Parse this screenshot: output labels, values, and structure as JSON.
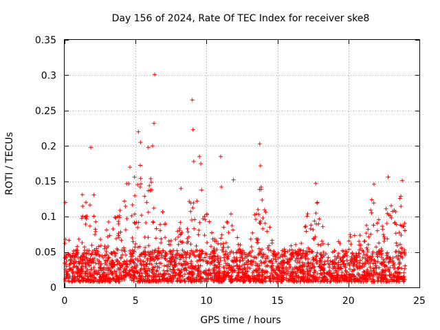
{
  "colors": {
    "series": "#ff0000",
    "axis": "#000000",
    "grid": "#a0a0a0"
  },
  "chart_data": {
    "type": "scatter",
    "title": "Day 156 of 2024, Rate Of TEC Index for receiver ske8",
    "xlabel": "GPS time / hours",
    "ylabel": "ROTI / TECUs",
    "xlim": [
      0,
      25
    ],
    "ylim": [
      0,
      0.35
    ],
    "xticks": [
      0,
      5,
      10,
      15,
      20,
      25
    ],
    "xtick_labels": [
      "0",
      "5",
      "10",
      "15",
      "20",
      "25"
    ],
    "yticks": [
      0,
      0.05,
      0.1,
      0.15,
      0.2,
      0.25,
      0.3,
      0.35
    ],
    "ytick_labels": [
      "0",
      "0.05",
      "0.1",
      "0.15",
      "0.2",
      "0.25",
      "0.3",
      "0.35"
    ],
    "grid": true,
    "marker": "+",
    "series": [
      {
        "name": "ROTI",
        "color": "#ff0000",
        "x_range": [
          0,
          24
        ],
        "baseline_density": 2600,
        "envelope": [
          [
            0.0,
            0.1
          ],
          [
            0.3,
            0.08
          ],
          [
            0.8,
            0.06
          ],
          [
            1.2,
            0.14
          ],
          [
            1.5,
            0.12
          ],
          [
            1.9,
            0.18
          ],
          [
            2.3,
            0.08
          ],
          [
            2.8,
            0.1
          ],
          [
            3.4,
            0.1
          ],
          [
            3.9,
            0.11
          ],
          [
            4.4,
            0.15
          ],
          [
            5.0,
            0.16
          ],
          [
            5.3,
            0.19
          ],
          [
            5.6,
            0.13
          ],
          [
            6.0,
            0.17
          ],
          [
            6.4,
            0.19
          ],
          [
            6.8,
            0.12
          ],
          [
            7.3,
            0.07
          ],
          [
            8.0,
            0.09
          ],
          [
            8.5,
            0.11
          ],
          [
            9.0,
            0.13
          ],
          [
            9.5,
            0.16
          ],
          [
            10.0,
            0.11
          ],
          [
            10.5,
            0.07
          ],
          [
            11.0,
            0.08
          ],
          [
            11.8,
            0.12
          ],
          [
            12.5,
            0.06
          ],
          [
            13.0,
            0.05
          ],
          [
            13.8,
            0.18
          ],
          [
            14.5,
            0.08
          ],
          [
            15.0,
            0.05
          ],
          [
            16.0,
            0.06
          ],
          [
            16.7,
            0.07
          ],
          [
            17.2,
            0.11
          ],
          [
            17.7,
            0.13
          ],
          [
            18.3,
            0.08
          ],
          [
            19.0,
            0.07
          ],
          [
            19.6,
            0.06
          ],
          [
            20.2,
            0.08
          ],
          [
            20.7,
            0.07
          ],
          [
            21.3,
            0.1
          ],
          [
            21.8,
            0.14
          ],
          [
            22.3,
            0.08
          ],
          [
            22.8,
            0.13
          ],
          [
            23.3,
            0.11
          ],
          [
            23.8,
            0.14
          ],
          [
            24.0,
            0.1
          ]
        ],
        "outliers": [
          [
            0.05,
            0.12
          ],
          [
            1.85,
            0.198
          ],
          [
            4.6,
            0.17
          ],
          [
            5.2,
            0.22
          ],
          [
            5.35,
            0.205
          ],
          [
            5.9,
            0.198
          ],
          [
            6.2,
            0.2
          ],
          [
            6.3,
            0.232
          ],
          [
            6.35,
            0.301
          ],
          [
            8.2,
            0.14
          ],
          [
            9.0,
            0.265
          ],
          [
            9.05,
            0.223
          ],
          [
            9.1,
            0.178
          ],
          [
            9.5,
            0.185
          ],
          [
            9.6,
            0.175
          ],
          [
            11.0,
            0.185
          ],
          [
            11.05,
            0.142
          ],
          [
            11.9,
            0.152
          ],
          [
            13.75,
            0.203
          ],
          [
            13.8,
            0.172
          ],
          [
            13.85,
            0.142
          ],
          [
            17.7,
            0.147
          ],
          [
            21.8,
            0.146
          ],
          [
            22.8,
            0.156
          ],
          [
            23.8,
            0.151
          ]
        ]
      }
    ]
  }
}
